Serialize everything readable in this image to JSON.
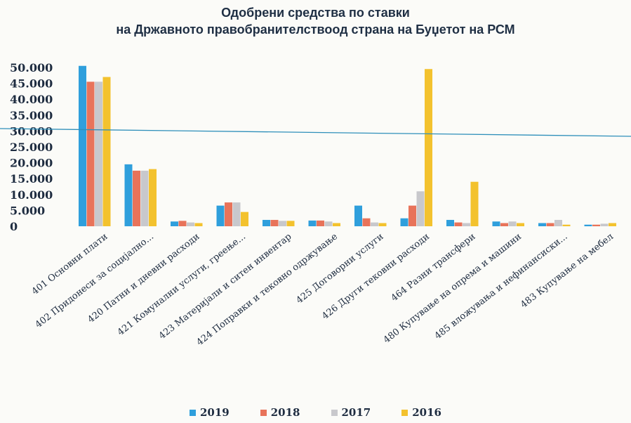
{
  "chart_data": {
    "type": "bar",
    "title_lines": [
      "Одобрени средства по ставки",
      "на Државното правобранителствоод страна на Буџетот на РСМ"
    ],
    "categories": [
      "401 Основни плати",
      "402 Придонеси за социјално...",
      "420 Патни и дневни расходи",
      "421 Комунални услуги, греење...",
      "423 Материјали и ситен инвентар",
      "424 Поправки и тековно одржување",
      "425 Договорни услуги",
      "426 Други тековни расходи",
      "464 Разни трансфери",
      "480 Купување на опрема и машини",
      "485 вложувања и нефинансиски...",
      "483 Купување на мебел"
    ],
    "series": [
      {
        "name": "2019",
        "color": "#2f9fdc",
        "values": [
          50500,
          19500,
          1500,
          6500,
          2000,
          1800,
          6500,
          2500,
          2000,
          1500,
          1000,
          500
        ]
      },
      {
        "name": "2018",
        "color": "#e8735a",
        "values": [
          45500,
          17500,
          1700,
          7500,
          2000,
          1800,
          2500,
          6500,
          1200,
          1000,
          1000,
          500
        ]
      },
      {
        "name": "2017",
        "color": "#c8c8cc",
        "values": [
          45500,
          17500,
          1200,
          7500,
          1700,
          1500,
          1200,
          11000,
          1000,
          1500,
          2000,
          800
        ]
      },
      {
        "name": "2016",
        "color": "#f3c22e",
        "values": [
          47000,
          18000,
          1000,
          4500,
          1700,
          1000,
          1000,
          49500,
          14000,
          1000,
          500,
          1000
        ]
      }
    ],
    "yticks": [
      "50.000",
      "45.000",
      "40.000",
      "35.000",
      "30.000",
      "25.000",
      "20.000",
      "15.000",
      "10.000",
      "5.000",
      "0"
    ],
    "ylim": [
      0,
      50000
    ],
    "reference_line": {
      "color": "#2e8fba"
    },
    "legend_position": "bottom",
    "grid": false
  }
}
